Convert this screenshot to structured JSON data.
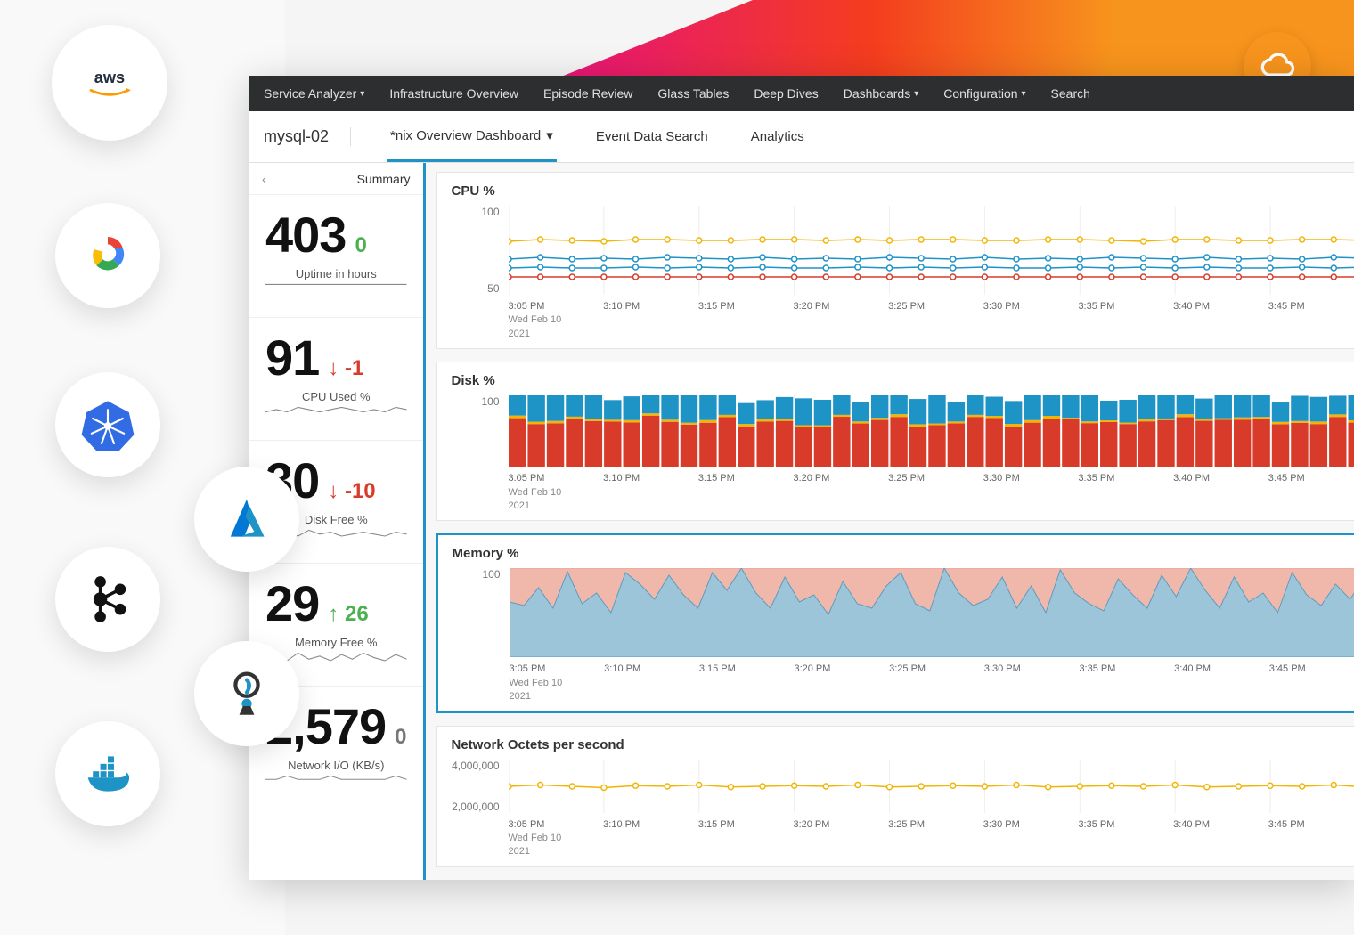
{
  "nav": {
    "items": [
      {
        "label": "Service Analyzer",
        "caret": true
      },
      {
        "label": "Infrastructure Overview",
        "caret": false
      },
      {
        "label": "Episode Review",
        "caret": false
      },
      {
        "label": "Glass Tables",
        "caret": false
      },
      {
        "label": "Deep Dives",
        "caret": false
      },
      {
        "label": "Dashboards",
        "caret": true
      },
      {
        "label": "Configuration",
        "caret": true
      },
      {
        "label": "Search",
        "caret": false
      }
    ],
    "bg_color": "#2d2e2f",
    "text_color": "#e0e0e0"
  },
  "subnav": {
    "host": "mysql-02",
    "tabs": [
      {
        "label": "*nix Overview Dashboard",
        "caret": true,
        "active": true
      },
      {
        "label": "Event Data Search",
        "caret": false,
        "active": false
      },
      {
        "label": "Analytics",
        "caret": false,
        "active": false
      }
    ],
    "active_underline_color": "#1e93c6"
  },
  "stats": {
    "summary_label": "Summary",
    "blocks": [
      {
        "value": "403",
        "delta": "0",
        "delta_dir": "none",
        "delta_color": "#4caf50",
        "label": "Uptime in hours",
        "sparkline": [
          2,
          2,
          2,
          2,
          2,
          2,
          2,
          2,
          2,
          2,
          2,
          2,
          2,
          2
        ]
      },
      {
        "value": "91",
        "delta": "-1",
        "delta_dir": "down",
        "delta_color": "#d93b2b",
        "label": "CPU Used %",
        "sparkline": [
          4,
          5,
          4,
          6,
          5,
          4,
          5,
          6,
          5,
          4,
          5,
          4,
          6,
          5
        ]
      },
      {
        "value": "30",
        "delta": "-10",
        "delta_dir": "down",
        "delta_color": "#d93b2b",
        "label": "Disk Free %",
        "sparkline": [
          3,
          5,
          6,
          4,
          7,
          5,
          6,
          4,
          5,
          6,
          5,
          4,
          6,
          5
        ]
      },
      {
        "value": "29",
        "delta": "26",
        "delta_dir": "up",
        "delta_color": "#4caf50",
        "label": "Memory Free %",
        "sparkline": [
          5,
          8,
          4,
          9,
          5,
          7,
          4,
          8,
          5,
          9,
          6,
          4,
          8,
          5
        ]
      },
      {
        "value": "2,579",
        "delta": "0",
        "delta_dir": "none",
        "delta_color": "#777",
        "label": "Network I/O (KB/s)",
        "sparkline": [
          3,
          3,
          4,
          3,
          3,
          3,
          4,
          3,
          3,
          3,
          3,
          3,
          4,
          3
        ]
      }
    ],
    "value_fontsize": 56,
    "label_fontsize": 13
  },
  "charts": {
    "x_ticks": [
      "3:05 PM",
      "3:10 PM",
      "3:15 PM",
      "3:20 PM",
      "3:25 PM",
      "3:30 PM",
      "3:35 PM",
      "3:40 PM",
      "3:45 PM"
    ],
    "x_sub1": "Wed Feb 10",
    "x_sub2": "2021",
    "panels": [
      {
        "title": "CPU %",
        "type": "line",
        "selected": false,
        "height": 100,
        "y_ticks": [
          "100",
          "50"
        ],
        "ylim": [
          0,
          100
        ],
        "grid_color": "#eee",
        "series": [
          {
            "color": "#f2b506",
            "values": [
              60,
              62,
              61,
              60,
              62,
              62,
              61,
              61,
              62,
              62,
              61,
              62,
              61,
              62,
              62,
              61,
              61,
              62,
              62,
              61,
              60,
              62,
              62,
              61,
              61,
              62,
              62,
              61
            ]
          },
          {
            "color": "#1e93c6",
            "values": [
              40,
              42,
              40,
              41,
              40,
              42,
              41,
              40,
              42,
              40,
              41,
              40,
              42,
              41,
              40,
              42,
              40,
              41,
              40,
              42,
              41,
              40,
              42,
              40,
              41,
              40,
              42,
              41
            ]
          },
          {
            "color": "#1e93c6",
            "values": [
              30,
              31,
              30,
              30,
              31,
              30,
              31,
              30,
              31,
              30,
              30,
              31,
              30,
              31,
              30,
              31,
              30,
              30,
              31,
              30,
              31,
              30,
              31,
              30,
              30,
              31,
              30,
              31
            ]
          },
          {
            "color": "#d93b2b",
            "values": [
              20,
              20,
              20,
              20,
              20,
              20,
              20,
              20,
              20,
              20,
              20,
              20,
              20,
              20,
              20,
              20,
              20,
              20,
              20,
              20,
              20,
              20,
              20,
              20,
              20,
              20,
              20,
              20
            ]
          }
        ]
      },
      {
        "title": "Disk %",
        "type": "stacked-bar",
        "selected": false,
        "height": 80,
        "y_ticks": [
          "100"
        ],
        "ylim": [
          0,
          100
        ],
        "stacks": [
          {
            "color": "#d93b2b",
            "range": [
              55,
              72
            ]
          },
          {
            "color": "#f2b506",
            "range": [
              2,
              4
            ]
          },
          {
            "color": "#1e93c6",
            "range": [
              26,
              40
            ]
          }
        ],
        "bar_count": 45,
        "bar_gap": 2
      },
      {
        "title": "Memory %",
        "type": "area",
        "selected": true,
        "height": 100,
        "y_ticks": [
          "100"
        ],
        "ylim": [
          0,
          100
        ],
        "series": [
          {
            "color": "#e8a190",
            "fill": "#efb8ab",
            "values": [
              100,
              100,
              100,
              100,
              100,
              100,
              100,
              100,
              100,
              100,
              100,
              100,
              100,
              100,
              100,
              100,
              100,
              100,
              100,
              100,
              100,
              100,
              100,
              100,
              100,
              100,
              100,
              100,
              100,
              100,
              100,
              100,
              100,
              100,
              100,
              100,
              100,
              100,
              100,
              100,
              100,
              100,
              100,
              100,
              100,
              100,
              100,
              100,
              100,
              100,
              100,
              100,
              100,
              100,
              100,
              100,
              100,
              100,
              100,
              100
            ]
          },
          {
            "color": "#5d9bbd",
            "fill": "#9dc5da",
            "values": [
              62,
              58,
              78,
              55,
              96,
              60,
              72,
              50,
              95,
              82,
              65,
              92,
              70,
              55,
              95,
              75,
              100,
              72,
              55,
              90,
              62,
              70,
              48,
              85,
              60,
              55,
              80,
              95,
              60,
              52,
              100,
              72,
              58,
              65,
              90,
              55,
              80,
              50,
              98,
              72,
              60,
              52,
              88,
              70,
              55,
              92,
              68,
              100,
              75,
              55,
              90,
              62,
              72,
              50,
              95,
              70,
              58,
              82,
              65,
              90
            ]
          }
        ]
      },
      {
        "title": "Network Octets per second",
        "type": "line",
        "selected": false,
        "height": 60,
        "y_ticks": [
          "4,000,000",
          "2,000,000"
        ],
        "ylim": [
          0,
          4000000
        ],
        "grid_color": "#eee",
        "series": [
          {
            "color": "#f2b506",
            "values": [
              2000000,
              2100000,
              2000000,
              1900000,
              2050000,
              2000000,
              2100000,
              1950000,
              2000000,
              2050000,
              2000000,
              2100000,
              1950000,
              2000000,
              2050000,
              2000000,
              2100000,
              1950000,
              2000000,
              2050000,
              2000000,
              2100000,
              1950000,
              2000000,
              2050000,
              2000000,
              2100000,
              1950000
            ]
          }
        ]
      }
    ]
  },
  "bubbles": [
    {
      "name": "aws-icon",
      "x": 58,
      "y": 28,
      "size": 130
    },
    {
      "name": "gcp-icon",
      "x": 62,
      "y": 228
    },
    {
      "name": "kubernetes-icon",
      "x": 62,
      "y": 418
    },
    {
      "name": "azure-icon",
      "x": 218,
      "y": 524
    },
    {
      "name": "kafka-icon",
      "x": 62,
      "y": 614
    },
    {
      "name": "pipeline-icon",
      "x": 218,
      "y": 720
    },
    {
      "name": "docker-icon",
      "x": 62,
      "y": 810
    }
  ],
  "colors": {
    "accent_blue": "#1e93c6",
    "accent_orange": "#f7941d",
    "accent_red": "#d93b2b",
    "accent_green": "#4caf50",
    "accent_yellow": "#f2b506"
  }
}
